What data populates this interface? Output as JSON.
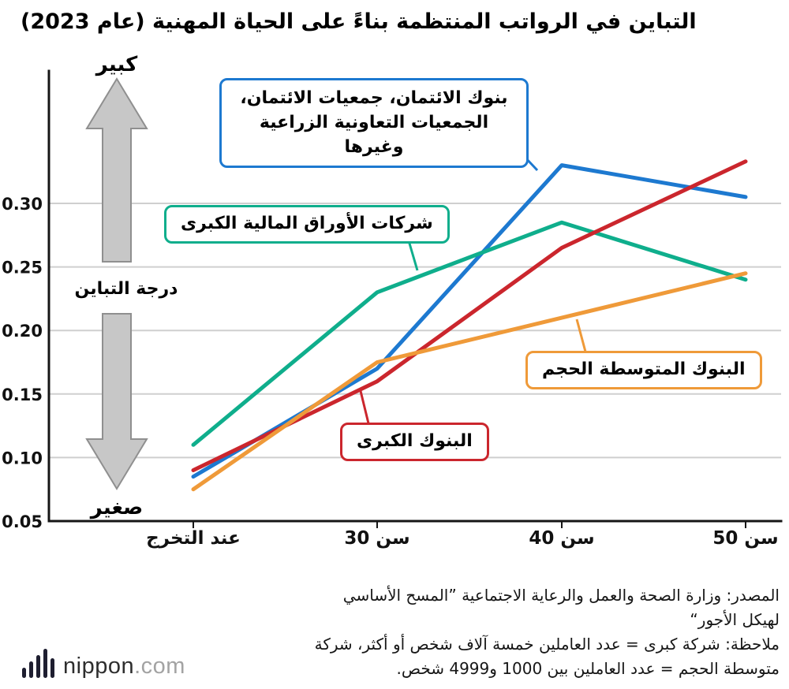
{
  "title": "التباين في الرواتب المنتظمة بناءً على الحياة المهنية (عام 2023)",
  "axis": {
    "large_label": "كبير",
    "small_label": "صغير",
    "y_title": "درجة التباين",
    "x_labels": [
      "عند التخرج",
      "سن 30",
      "سن 40",
      "سن 50"
    ]
  },
  "chart_data": {
    "type": "line",
    "title": "التباين في الرواتب المنتظمة بناءً على الحياة المهنية (عام 2023)",
    "categories": [
      "عند التخرج",
      "سن 30",
      "سن 40",
      "سن 50"
    ],
    "series": [
      {
        "name": "بنوك الائتمان، جمعيات الائتمان، الجمعيات التعاونية الزراعية وغيرها",
        "color": "#1d79d0",
        "values": [
          0.085,
          0.17,
          0.33,
          0.305
        ]
      },
      {
        "name": "شركات الأوراق المالية الكبرى",
        "color": "#0fae8c",
        "values": [
          0.11,
          0.23,
          0.285,
          0.24
        ]
      },
      {
        "name": "البنوك الكبرى",
        "color": "#cb262d",
        "values": [
          0.09,
          0.16,
          0.265,
          0.333
        ]
      },
      {
        "name": "البنوك المتوسطة الحجم",
        "color": "#ef9a39",
        "values": [
          0.075,
          0.175,
          0.21,
          0.245
        ]
      }
    ],
    "ylim": [
      0.05,
      0.35
    ],
    "y_ticks": [
      0.05,
      0.1,
      0.15,
      0.2,
      0.25,
      0.3
    ],
    "ylabel": "درجة التباين",
    "xlabel": "",
    "grid": "horizontal",
    "legend_position": "callouts"
  },
  "callouts": [
    {
      "label": "بنوك الائتمان، جمعيات الائتمان،\nالجمعيات التعاونية الزراعية وغيرها",
      "color": "#1d79d0"
    },
    {
      "label": "شركات الأوراق المالية الكبرى",
      "color": "#0fae8c"
    },
    {
      "label": "البنوك الكبرى",
      "color": "#cb262d"
    },
    {
      "label": "البنوك المتوسطة الحجم",
      "color": "#ef9a39"
    }
  ],
  "footer": {
    "source": "المصدر: وزارة الصحة والعمل والرعاية الاجتماعية ”المسح الأساسي\nلهيكل الأجور“",
    "note": "ملاحظة: شركة كبرى = عدد العاملين خمسة آلاف شخص أو أكثر، شركة\nمتوسطة الحجم = عدد العاملين بين 1000 و4999 شخص.",
    "logo_text": "nippon",
    "logo_suffix": ".com",
    "logo_icon": "soundwave-bars-icon"
  }
}
